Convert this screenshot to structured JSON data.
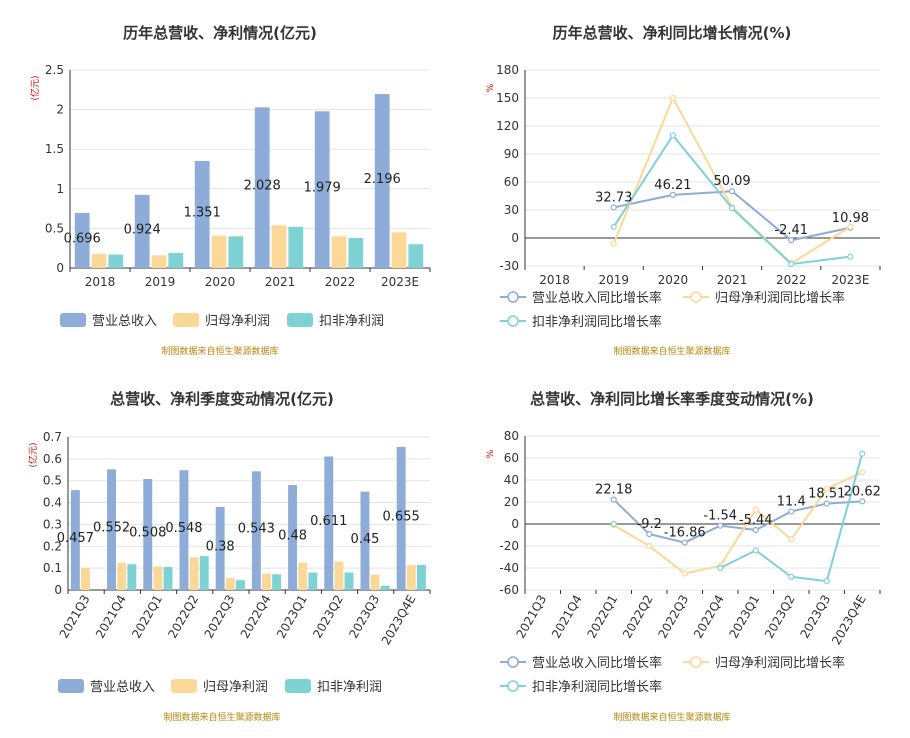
{
  "colors": {
    "revenue": "#8EACD8",
    "net_profit": "#FBD898",
    "deducted_profit": "#7FD2D4",
    "source": "#B8860B",
    "unit_label": "#CC0000",
    "grid": "#E3E3E3",
    "axis": "#333333"
  },
  "source_note": "制图数据来自恒生聚源数据库",
  "chart_data": [
    {
      "type": "bar",
      "title": "历年总营收、净利情况(亿元)",
      "ylabel": "(亿元)",
      "ylim": [
        0,
        2.5
      ],
      "yticks": [
        "0",
        "0.5",
        "1",
        "1.5",
        "2",
        "2.5"
      ],
      "categories": [
        "2018",
        "2019",
        "2020",
        "2021",
        "2022",
        "2023E"
      ],
      "series": [
        {
          "name": "营业总收入",
          "values": [
            0.696,
            0.924,
            1.351,
            2.028,
            1.979,
            2.196
          ]
        },
        {
          "name": "归母净利润",
          "values": [
            0.18,
            0.16,
            0.41,
            0.54,
            0.4,
            0.45
          ]
        },
        {
          "name": "扣非净利润",
          "values": [
            0.17,
            0.19,
            0.4,
            0.52,
            0.38,
            0.3
          ]
        }
      ],
      "data_labels": [
        "0.696",
        "0.924",
        "1.351",
        "2.028",
        "1.979",
        "2.196"
      ],
      "grid": true,
      "legend": "bottom"
    },
    {
      "type": "line",
      "title": "历年总营收、净利同比增长情况(%)",
      "ylabel": "%",
      "ylim": [
        -30,
        180
      ],
      "yticks": [
        "-30",
        "0",
        "30",
        "60",
        "90",
        "120",
        "150",
        "180"
      ],
      "categories": [
        "2018",
        "2019",
        "2020",
        "2021",
        "2022",
        "2023E"
      ],
      "series": [
        {
          "name": "营业总收入同比增长率",
          "values": [
            null,
            32.73,
            46.21,
            50.09,
            -2.41,
            10.98
          ]
        },
        {
          "name": "归母净利润同比增长率",
          "values": [
            null,
            -6,
            150,
            33,
            -27,
            12
          ]
        },
        {
          "name": "扣非净利润同比增长率",
          "values": [
            null,
            12,
            110,
            32,
            -28,
            -20
          ]
        }
      ],
      "data_labels": [
        "",
        "32.73",
        "46.21",
        "50.09",
        "-2.41",
        "10.98"
      ],
      "grid": true,
      "legend": "bottom"
    },
    {
      "type": "bar",
      "title": "总营收、净利季度变动情况(亿元)",
      "ylabel": "(亿元)",
      "ylim": [
        0,
        0.7
      ],
      "yticks": [
        "0",
        "0.1",
        "0.2",
        "0.3",
        "0.4",
        "0.5",
        "0.6",
        "0.7"
      ],
      "categories": [
        "2021Q3",
        "2021Q4",
        "2022Q1",
        "2022Q2",
        "2022Q3",
        "2022Q4",
        "2023Q1",
        "2023Q2",
        "2023Q3",
        "2023Q4E"
      ],
      "series": [
        {
          "name": "营业总收入",
          "values": [
            0.457,
            0.552,
            0.508,
            0.548,
            0.38,
            0.543,
            0.48,
            0.611,
            0.45,
            0.655
          ]
        },
        {
          "name": "归母净利润",
          "values": [
            0.1,
            0.125,
            0.108,
            0.15,
            0.055,
            0.075,
            0.125,
            0.13,
            0.07,
            0.115
          ]
        },
        {
          "name": "扣非净利润",
          "values": [
            0.0,
            0.118,
            0.105,
            0.155,
            0.045,
            0.072,
            0.08,
            0.08,
            0.02,
            0.115
          ]
        }
      ],
      "data_labels": [
        "0.457",
        "0.552",
        "0.508",
        "0.548",
        "0.38",
        "0.543",
        "0.48",
        "0.611",
        "0.45",
        "0.655"
      ],
      "grid": true,
      "legend": "bottom"
    },
    {
      "type": "line",
      "title": "总营收、净利同比增长率季度变动情况(%)",
      "ylabel": "%",
      "ylim": [
        -60,
        80
      ],
      "yticks": [
        "-60",
        "-40",
        "-20",
        "0",
        "20",
        "40",
        "60",
        "80"
      ],
      "categories": [
        "2021Q3",
        "2021Q4",
        "2022Q1",
        "2022Q2",
        "2022Q3",
        "2022Q4",
        "2023Q1",
        "2023Q2",
        "2023Q3",
        "2023Q4E"
      ],
      "series": [
        {
          "name": "营业总收入同比增长率",
          "values": [
            null,
            null,
            22.18,
            -9.2,
            -16.86,
            -1.54,
            -5.44,
            11.4,
            18.51,
            20.62
          ]
        },
        {
          "name": "归母净利润同比增长率",
          "values": [
            null,
            null,
            -1,
            -20,
            -45,
            -38,
            13,
            -14,
            32,
            47
          ]
        },
        {
          "name": "扣非净利润同比增长率",
          "values": [
            null,
            null,
            0,
            null,
            null,
            -40,
            -24,
            -48,
            -52,
            64
          ]
        }
      ],
      "data_labels": [
        "",
        "",
        "22.18",
        "-9.2",
        "-16.86",
        "-1.54",
        "-5.44",
        "11.4",
        "18.51",
        "20.62"
      ],
      "grid": true,
      "legend": "bottom"
    }
  ]
}
